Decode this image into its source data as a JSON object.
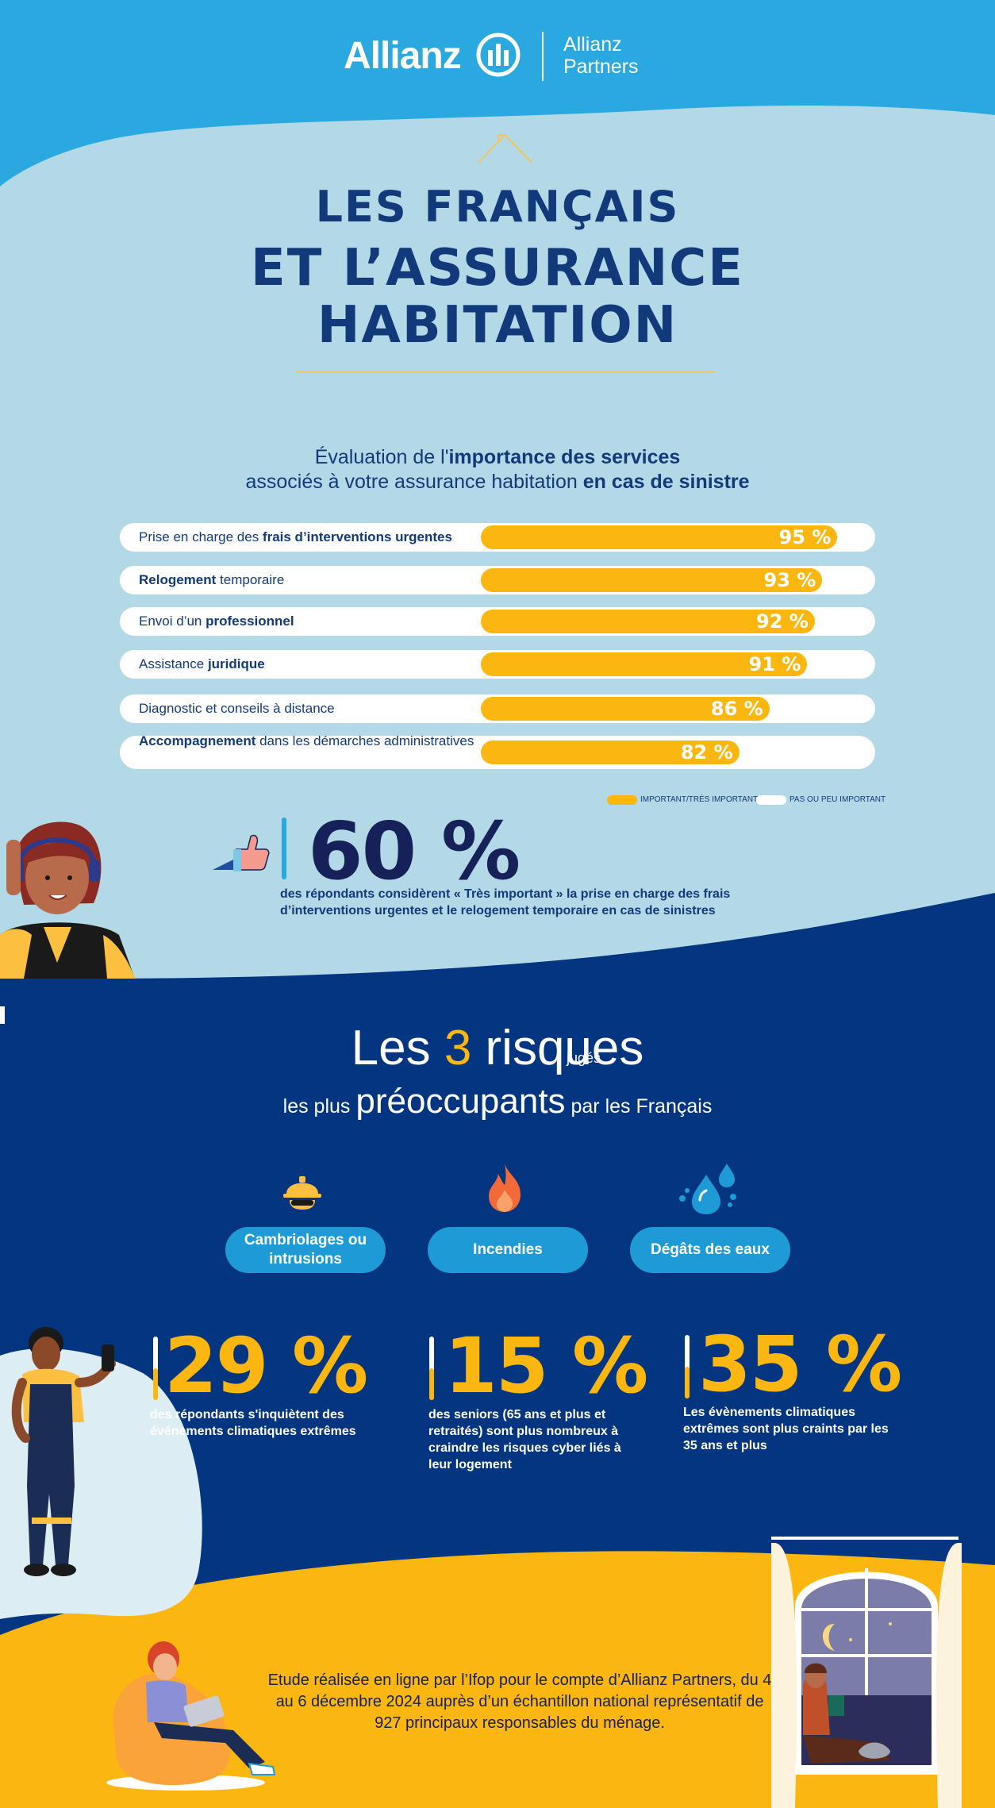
{
  "header": {
    "logo_text": "Allianz",
    "partner_line1": "Allianz",
    "partner_line2": "Partners"
  },
  "title": {
    "line1": "LES FRANÇAIS",
    "line2": "ET L’ASSURANCE",
    "line3": "HABITATION"
  },
  "survey": {
    "subtitle_1a": "Évaluation de l'",
    "subtitle_1b": "importance des services",
    "subtitle_2a": "associés à votre assurance habitation ",
    "subtitle_2b": "en cas de sinistre",
    "legend_important": "IMPORTANT/TRÈS IMPORTANT",
    "legend_not_important": "PAS OU PEU IMPORTANT"
  },
  "chart_data": {
    "type": "bar",
    "categories": [
      "Prise en charge des frais d’interventions urgentes",
      "Relogement temporaire",
      "Envoi d’un professionnel",
      "Assistance juridique",
      "Diagnostic et conseils à distance",
      "Accompagnement dans les démarches administratives"
    ],
    "series": [
      {
        "name": "IMPORTANT/TRÈS IMPORTANT",
        "values": [
          95,
          93,
          92,
          91,
          86,
          82
        ]
      }
    ],
    "value_labels": [
      "95 %",
      "93 %",
      "92 %",
      "91 %",
      "86 %",
      "82 %"
    ],
    "xlim": [
      0,
      100
    ],
    "legend_position": "bottom-right",
    "colors": {
      "important": "#fbb60f",
      "not_important": "#ffffff"
    }
  },
  "bars": [
    {
      "pre": "Prise en charge des ",
      "bold": "frais d’interventions urgentes",
      "post": ""
    },
    {
      "pre": "",
      "bold": "Relogement",
      "post": " temporaire"
    },
    {
      "pre": "Envoi d’un ",
      "bold": "professionnel",
      "post": ""
    },
    {
      "pre": "Assistance ",
      "bold": "juridique",
      "post": ""
    },
    {
      "pre": "Diagnostic et conseils à distance",
      "bold": "",
      "post": ""
    },
    {
      "pre": "",
      "bold": "Accompagnement",
      "post": " dans les démarches administratives"
    }
  ],
  "highlight": {
    "value": "60 %",
    "text": "des répondants considèrent « Très important » la prise en charge des frais d’interventions urgentes et le relogement temporaire en cas de sinistres"
  },
  "risks": {
    "title_a": "Les ",
    "title_num": "3",
    "title_b": " risques",
    "title_small": "jugés",
    "subtitle_a": "les plus ",
    "subtitle_big": "préoccupants",
    "subtitle_b": " par les Français",
    "items": [
      {
        "label": "Cambriolages ou intrusions",
        "icon": "burglar-helmet-icon"
      },
      {
        "label": "Incendies",
        "icon": "fire-icon"
      },
      {
        "label": "Dégâts des eaux",
        "icon": "water-drops-icon"
      }
    ]
  },
  "stats": [
    {
      "value": "29 %",
      "text": "des répondants s'inquiètent des événements climatiques extrêmes"
    },
    {
      "value": "15 %",
      "text": "des seniors (65 ans et plus et retraités) sont plus nombreux à craindre les risques cyber liés à leur logement"
    },
    {
      "value": "35 %",
      "text": "Les évènements climatiques extrêmes sont plus craints par les 35 ans et plus"
    }
  ],
  "footer": {
    "study": "Etude réalisée en ligne par l’Ifop pour le compte d’Allianz Partners, du 4 au 6 décembre 2024 auprès d’un échantillon national représentatif de 927 principaux responsables du ménage."
  },
  "colors": {
    "light_blue": "#b3d9e6",
    "sky_blue": "#2aa8e0",
    "navy": "#033580",
    "yellow": "#fbb60f",
    "pill_blue": "#1e9bd7"
  }
}
